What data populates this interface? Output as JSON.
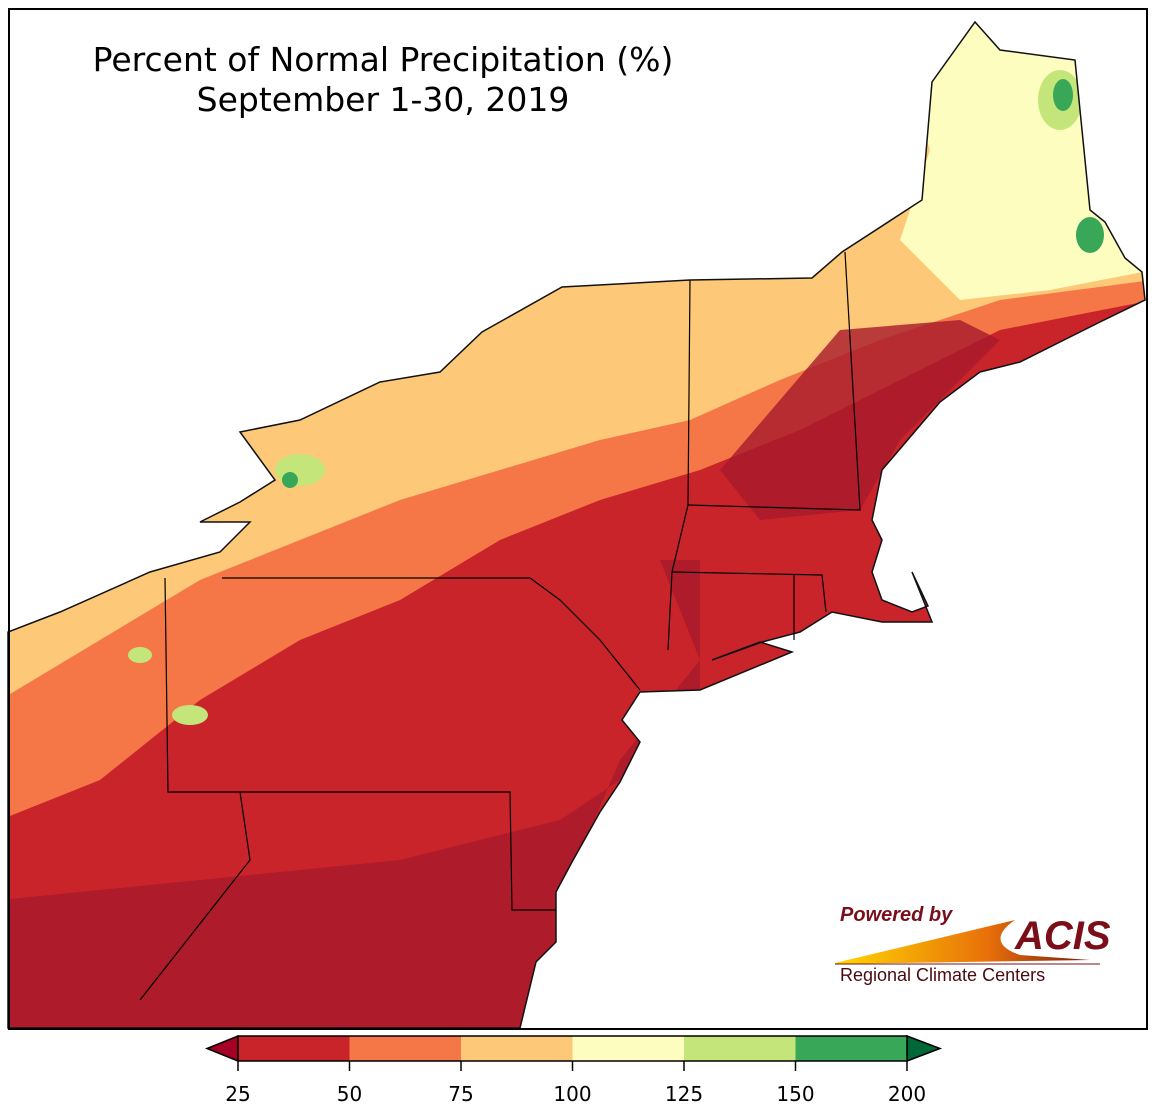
{
  "title": {
    "line1": "Percent of Normal Precipitation (%)",
    "line2": "September 1-30, 2019"
  },
  "colorbar": {
    "ticks": [
      "25",
      "50",
      "75",
      "100",
      "125",
      "150",
      "200"
    ],
    "under_color": "#a50026",
    "over_color": "#006837",
    "bins": [
      {
        "range": "25-50",
        "color": "#c9242a"
      },
      {
        "range": "50-75",
        "color": "#f57748"
      },
      {
        "range": "75-100",
        "color": "#fdc878"
      },
      {
        "range": "100-125",
        "color": "#fefdc0"
      },
      {
        "range": "125-150",
        "color": "#c3e57a"
      },
      {
        "range": "150-200",
        "color": "#38a757"
      }
    ]
  },
  "logo": {
    "powered": "Powered by",
    "acis": "ACIS",
    "rcc": "Regional Climate Centers"
  }
}
